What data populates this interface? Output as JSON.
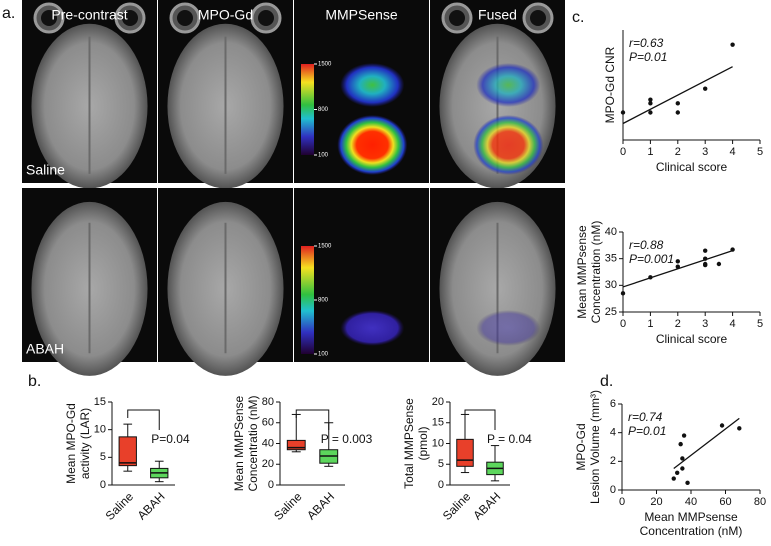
{
  "panel_labels": [
    "a.",
    "b.",
    "c.",
    "d."
  ],
  "images": {
    "columns": [
      "Pre-contrast",
      "MPO-Gd",
      "MMPSense",
      "Fused"
    ],
    "rows": [
      "Saline",
      "ABAH"
    ],
    "colorbar": {
      "lim": [
        100,
        1500
      ],
      "ticks": [
        100,
        800,
        1500
      ]
    }
  },
  "chart_data": [
    {
      "type": "box",
      "y_label": [
        "Mean MPO-Gd",
        "activity (LAR)"
      ],
      "categories": [
        "Saline",
        "ABAH"
      ],
      "boxes": [
        {
          "color": "#e8402a",
          "low": 2.5,
          "q1": 3.5,
          "median": 4,
          "q3": 8.7,
          "high": 11
        },
        {
          "color": "#5cd65c",
          "low": 0.6,
          "q1": 1.3,
          "median": 2.2,
          "q3": 3,
          "high": 4.3
        }
      ],
      "ylim": [
        0,
        15
      ],
      "yticks": [
        0,
        5,
        10,
        15
      ],
      "annotation": "P=0.04"
    },
    {
      "type": "box",
      "y_label": [
        "Mean MMPSense",
        "Concentratio (nM)"
      ],
      "categories": [
        "Saline",
        "ABAH"
      ],
      "boxes": [
        {
          "color": "#e8402a",
          "low": 32,
          "q1": 34,
          "median": 36,
          "q3": 43,
          "high": 68
        },
        {
          "color": "#5cd65c",
          "low": 18,
          "q1": 21,
          "median": 28,
          "q3": 34,
          "high": 60
        }
      ],
      "ylim": [
        0,
        80
      ],
      "yticks": [
        0,
        20,
        40,
        60,
        80
      ],
      "annotation": "P = 0.003"
    },
    {
      "type": "box",
      "y_label": [
        "Total MMPSense",
        "(pmol)"
      ],
      "categories": [
        "Saline",
        "ABAH"
      ],
      "boxes": [
        {
          "color": "#e8402a",
          "low": 3,
          "q1": 4.5,
          "median": 6,
          "q3": 11,
          "high": 17
        },
        {
          "color": "#5cd65c",
          "low": 1,
          "q1": 2.5,
          "median": 4,
          "q3": 5.5,
          "high": 9.5
        }
      ],
      "ylim": [
        0,
        20
      ],
      "yticks": [
        0,
        5,
        10,
        15,
        20
      ],
      "annotation": "P = 0.04"
    },
    {
      "type": "scatter",
      "y_label": [
        "MPO-Gd CNR"
      ],
      "x_label": [
        "Clinical score"
      ],
      "x": [
        0,
        1,
        1,
        1,
        2,
        2,
        3,
        4
      ],
      "y": [
        15,
        20,
        22,
        15,
        20,
        15,
        28,
        52
      ],
      "fit": {
        "x": [
          0,
          4
        ],
        "y": [
          9,
          40
        ]
      },
      "xlim": [
        0,
        5
      ],
      "xticks": [
        0,
        1,
        2,
        3,
        4,
        5
      ],
      "ylim": [
        0,
        60
      ],
      "annotations": [
        "r=0.63",
        "P=0.01"
      ]
    },
    {
      "type": "scatter",
      "y_label": [
        "Mean MMPsense",
        "Concentration (nM)"
      ],
      "x_label": [
        "Clinical score"
      ],
      "x": [
        0,
        1,
        2,
        2,
        3,
        3,
        3,
        3,
        3.5,
        4
      ],
      "y": [
        28.5,
        31.5,
        33.5,
        34.5,
        34,
        35,
        36.5,
        33.8,
        34,
        36.7
      ],
      "fit": {
        "x": [
          0,
          4
        ],
        "y": [
          29.7,
          36.5
        ]
      },
      "xlim": [
        0,
        5
      ],
      "xticks": [
        0,
        1,
        2,
        3,
        4,
        5
      ],
      "ylim": [
        25,
        40
      ],
      "yticks": [
        25,
        30,
        35,
        40
      ],
      "annotations": [
        "r=0.88",
        "P=0.001"
      ]
    },
    {
      "type": "scatter",
      "y_label": [
        "MPO-Gd",
        "Lesion Volume (mm³)"
      ],
      "x_label": [
        "Mean MMPsense",
        "Concentration (nM)"
      ],
      "x": [
        30,
        32,
        34,
        36,
        35,
        38,
        58,
        68,
        35
      ],
      "y": [
        0.8,
        1.2,
        3.2,
        3.8,
        2.2,
        0.5,
        4.5,
        4.3,
        1.5
      ],
      "fit": {
        "x": [
          30,
          68
        ],
        "y": [
          1.5,
          5
        ]
      },
      "xlim": [
        0,
        80
      ],
      "xticks": [
        0,
        20,
        40,
        60,
        80
      ],
      "ylim": [
        0,
        6
      ],
      "yticks": [
        0,
        2,
        4,
        6
      ],
      "annotations": [
        "r=0.74",
        "P=0.01"
      ]
    }
  ]
}
